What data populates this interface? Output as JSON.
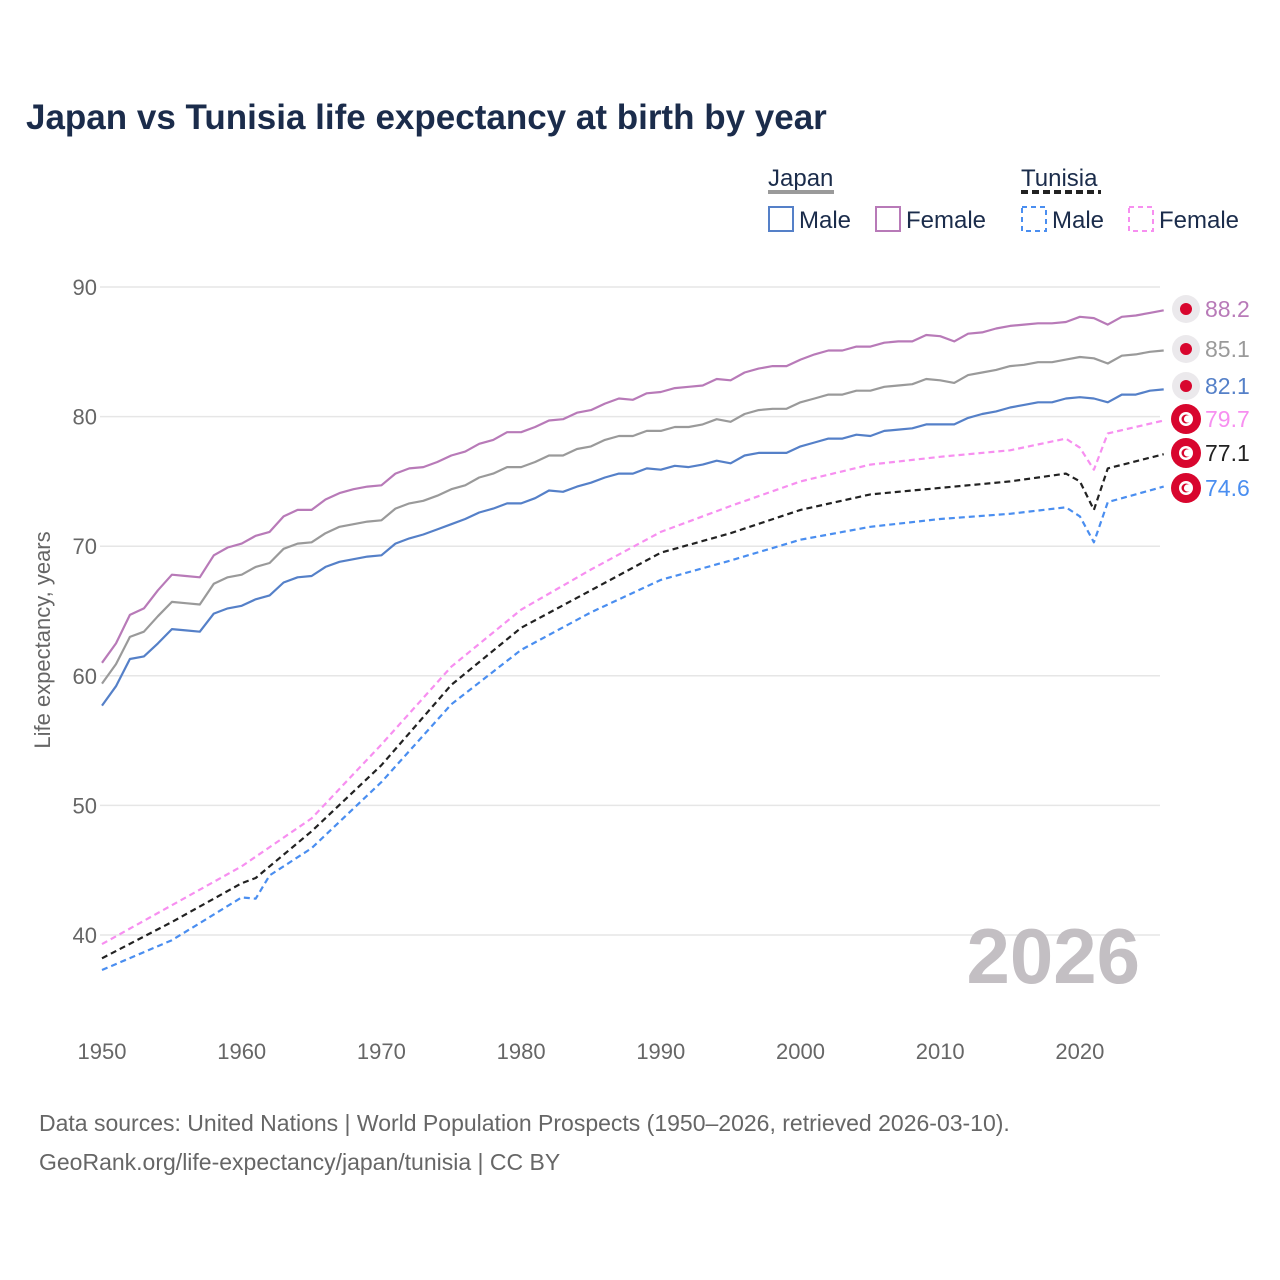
{
  "chart_data": {
    "type": "line",
    "title": "Japan vs Tunisia life expectancy at birth by year",
    "xlabel": "",
    "ylabel": "Life expectancy, years",
    "xlim": [
      1950,
      2026
    ],
    "ylim": [
      35,
      90
    ],
    "x_ticks": [
      "1950",
      "1960",
      "1970",
      "1980",
      "1990",
      "2000",
      "2010",
      "2020"
    ],
    "y_ticks": [
      "40",
      "50",
      "60",
      "70",
      "80",
      "90"
    ],
    "grid": true,
    "legend_position": "top-right",
    "current_year_label": "2026",
    "legend": {
      "groups": [
        {
          "country": "Japan",
          "entries": [
            "Male",
            "Female"
          ]
        },
        {
          "country": "Tunisia",
          "entries": [
            "Male",
            "Female"
          ]
        }
      ]
    },
    "series": [
      {
        "name": "Japan Female",
        "country": "Japan",
        "sex": "Female",
        "color": "#b87ab8",
        "dashed": false,
        "end_label": "88.2",
        "x": [
          1950,
          1951,
          1952,
          1953,
          1954,
          1955,
          1956,
          1957,
          1958,
          1959,
          1960,
          1961,
          1962,
          1963,
          1964,
          1965,
          1966,
          1967,
          1968,
          1969,
          1970,
          1971,
          1972,
          1973,
          1974,
          1975,
          1976,
          1977,
          1978,
          1979,
          1980,
          1981,
          1982,
          1983,
          1984,
          1985,
          1986,
          1987,
          1988,
          1989,
          1990,
          1991,
          1992,
          1993,
          1994,
          1995,
          1996,
          1997,
          1998,
          1999,
          2000,
          2001,
          2002,
          2003,
          2004,
          2005,
          2006,
          2007,
          2008,
          2009,
          2010,
          2011,
          2012,
          2013,
          2014,
          2015,
          2016,
          2017,
          2018,
          2019,
          2020,
          2021,
          2022,
          2023,
          2024,
          2025,
          2026
        ],
        "y": [
          61.0,
          62.5,
          64.7,
          65.2,
          66.6,
          67.8,
          67.7,
          67.6,
          69.3,
          69.9,
          70.2,
          70.8,
          71.1,
          72.3,
          72.8,
          72.8,
          73.6,
          74.1,
          74.4,
          74.6,
          74.7,
          75.6,
          76.0,
          76.1,
          76.5,
          77.0,
          77.3,
          77.9,
          78.2,
          78.8,
          78.8,
          79.2,
          79.7,
          79.8,
          80.3,
          80.5,
          81.0,
          81.4,
          81.3,
          81.8,
          81.9,
          82.2,
          82.3,
          82.4,
          82.9,
          82.8,
          83.4,
          83.7,
          83.9,
          83.9,
          84.4,
          84.8,
          85.1,
          85.1,
          85.4,
          85.4,
          85.7,
          85.8,
          85.8,
          86.3,
          86.2,
          85.8,
          86.4,
          86.5,
          86.8,
          87.0,
          87.1,
          87.2,
          87.2,
          87.3,
          87.7,
          87.6,
          87.1,
          87.7,
          87.8,
          88.0,
          88.2
        ]
      },
      {
        "name": "Japan Both sexes",
        "country": "Japan",
        "sex": "Both",
        "color": "#9a9a9a",
        "dashed": false,
        "end_label": "85.1",
        "x": [
          1950,
          1951,
          1952,
          1953,
          1954,
          1955,
          1956,
          1957,
          1958,
          1959,
          1960,
          1961,
          1962,
          1963,
          1964,
          1965,
          1966,
          1967,
          1968,
          1969,
          1970,
          1971,
          1972,
          1973,
          1974,
          1975,
          1976,
          1977,
          1978,
          1979,
          1980,
          1981,
          1982,
          1983,
          1984,
          1985,
          1986,
          1987,
          1988,
          1989,
          1990,
          1991,
          1992,
          1993,
          1994,
          1995,
          1996,
          1997,
          1998,
          1999,
          2000,
          2001,
          2002,
          2003,
          2004,
          2005,
          2006,
          2007,
          2008,
          2009,
          2010,
          2011,
          2012,
          2013,
          2014,
          2015,
          2016,
          2017,
          2018,
          2019,
          2020,
          2021,
          2022,
          2023,
          2024,
          2025,
          2026
        ],
        "y": [
          59.4,
          60.9,
          63.0,
          63.4,
          64.6,
          65.7,
          65.6,
          65.5,
          67.1,
          67.6,
          67.8,
          68.4,
          68.7,
          69.8,
          70.2,
          70.3,
          71.0,
          71.5,
          71.7,
          71.9,
          72.0,
          72.9,
          73.3,
          73.5,
          73.9,
          74.4,
          74.7,
          75.3,
          75.6,
          76.1,
          76.1,
          76.5,
          77.0,
          77.0,
          77.5,
          77.7,
          78.2,
          78.5,
          78.5,
          78.9,
          78.9,
          79.2,
          79.2,
          79.4,
          79.8,
          79.6,
          80.2,
          80.5,
          80.6,
          80.6,
          81.1,
          81.4,
          81.7,
          81.7,
          82.0,
          82.0,
          82.3,
          82.4,
          82.5,
          82.9,
          82.8,
          82.6,
          83.2,
          83.4,
          83.6,
          83.9,
          84.0,
          84.2,
          84.2,
          84.4,
          84.6,
          84.5,
          84.1,
          84.7,
          84.8,
          85.0,
          85.1
        ]
      },
      {
        "name": "Japan Male",
        "country": "Japan",
        "sex": "Male",
        "color": "#5580c8",
        "dashed": false,
        "end_label": "82.1",
        "x": [
          1950,
          1951,
          1952,
          1953,
          1954,
          1955,
          1956,
          1957,
          1958,
          1959,
          1960,
          1961,
          1962,
          1963,
          1964,
          1965,
          1966,
          1967,
          1968,
          1969,
          1970,
          1971,
          1972,
          1973,
          1974,
          1975,
          1976,
          1977,
          1978,
          1979,
          1980,
          1981,
          1982,
          1983,
          1984,
          1985,
          1986,
          1987,
          1988,
          1989,
          1990,
          1991,
          1992,
          1993,
          1994,
          1995,
          1996,
          1997,
          1998,
          1999,
          2000,
          2001,
          2002,
          2003,
          2004,
          2005,
          2006,
          2007,
          2008,
          2009,
          2010,
          2011,
          2012,
          2013,
          2014,
          2015,
          2016,
          2017,
          2018,
          2019,
          2020,
          2021,
          2022,
          2023,
          2024,
          2025,
          2026
        ],
        "y": [
          57.7,
          59.2,
          61.3,
          61.5,
          62.5,
          63.6,
          63.5,
          63.4,
          64.8,
          65.2,
          65.4,
          65.9,
          66.2,
          67.2,
          67.6,
          67.7,
          68.4,
          68.8,
          69.0,
          69.2,
          69.3,
          70.2,
          70.6,
          70.9,
          71.3,
          71.7,
          72.1,
          72.6,
          72.9,
          73.3,
          73.3,
          73.7,
          74.3,
          74.2,
          74.6,
          74.9,
          75.3,
          75.6,
          75.6,
          76.0,
          75.9,
          76.2,
          76.1,
          76.3,
          76.6,
          76.4,
          77.0,
          77.2,
          77.2,
          77.2,
          77.7,
          78.0,
          78.3,
          78.3,
          78.6,
          78.5,
          78.9,
          79.0,
          79.1,
          79.4,
          79.4,
          79.4,
          79.9,
          80.2,
          80.4,
          80.7,
          80.9,
          81.1,
          81.1,
          81.4,
          81.5,
          81.4,
          81.1,
          81.7,
          81.7,
          82.0,
          82.1
        ]
      },
      {
        "name": "Tunisia Female",
        "country": "Tunisia",
        "sex": "Female",
        "color": "#f78ff0",
        "dashed": true,
        "end_label": "79.7",
        "x": [
          1950,
          1955,
          1960,
          1965,
          1970,
          1975,
          1980,
          1985,
          1990,
          1995,
          2000,
          2005,
          2010,
          2015,
          2019,
          2020,
          2021,
          2022,
          2026
        ],
        "y": [
          39.3,
          42.3,
          45.3,
          49.0,
          54.7,
          60.7,
          65.1,
          68.2,
          71.1,
          73.1,
          75.0,
          76.3,
          76.9,
          77.4,
          78.3,
          77.6,
          75.9,
          78.7,
          79.7
        ]
      },
      {
        "name": "Tunisia Both sexes",
        "country": "Tunisia",
        "sex": "Both",
        "color": "#222222",
        "dashed": true,
        "end_label": "77.1",
        "x": [
          1950,
          1955,
          1960,
          1961,
          1965,
          1970,
          1975,
          1980,
          1985,
          1990,
          1995,
          2000,
          2005,
          2010,
          2015,
          2019,
          2020,
          2021,
          2022,
          2026
        ],
        "y": [
          38.2,
          41.0,
          44.0,
          44.4,
          48.0,
          53.1,
          59.3,
          63.7,
          66.6,
          69.5,
          71.0,
          72.8,
          74.0,
          74.5,
          75.0,
          75.6,
          75.0,
          72.8,
          76.0,
          77.1
        ]
      },
      {
        "name": "Tunisia Male",
        "country": "Tunisia",
        "sex": "Male",
        "color": "#4a8ef0",
        "dashed": true,
        "end_label": "74.6",
        "x": [
          1950,
          1955,
          1960,
          1961,
          1962,
          1965,
          1970,
          1975,
          1980,
          1985,
          1990,
          1995,
          2000,
          2005,
          2010,
          2015,
          2019,
          2020,
          2021,
          2022,
          2026
        ],
        "y": [
          37.3,
          39.6,
          42.9,
          42.8,
          44.6,
          46.7,
          51.8,
          57.8,
          62.0,
          64.9,
          67.4,
          68.9,
          70.5,
          71.5,
          72.1,
          72.5,
          73.0,
          72.3,
          70.3,
          73.4,
          74.6
        ]
      }
    ],
    "footer": {
      "line1": "Data sources: United Nations | World Population Prospects (1950–2026, retrieved 2026-03-10).",
      "line2": "GeoRank.org/life-expectancy/japan/tunisia | CC BY"
    }
  }
}
